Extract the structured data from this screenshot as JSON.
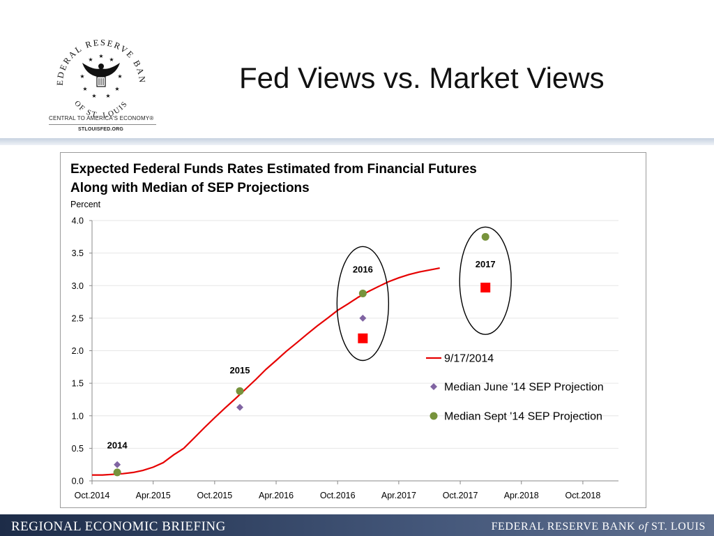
{
  "header": {
    "logo": {
      "seal_text_top": "FEDERAL RESERVE BANK",
      "seal_text_bottom": "OF ST. LOUIS",
      "tagline": "CENTRAL TO AMERICA'S ECONOMY®",
      "url": "STLOUISFED.ORG"
    },
    "title": "Fed Views vs. Market Views"
  },
  "footer": {
    "left": "REGIONAL ECONOMIC BRIEFING",
    "right_prefix": "FEDERAL RESERVE BANK ",
    "right_of": "of",
    "right_suffix": " ST. LOUIS"
  },
  "colors": {
    "line": "#e60000",
    "june_marker": "#8064a2",
    "sept_marker": "#77933c",
    "square_marker": "#ff0000",
    "footer_band": "#2d3c5c"
  },
  "chart_data": {
    "type": "line",
    "title": "Expected Federal Funds Rates Estimated from Financial Futures Along with Median of SEP Projections",
    "ylabel": "Percent",
    "ylim": [
      0,
      4
    ],
    "yticks": [
      "0.0",
      "0.5",
      "1.0",
      "1.5",
      "2.0",
      "2.5",
      "3.0",
      "3.5",
      "4.0"
    ],
    "xticks": [
      "Oct.2014",
      "Apr.2015",
      "Oct.2015",
      "Apr.2016",
      "Oct.2016",
      "Apr.2017",
      "Oct.2017",
      "Apr.2018",
      "Oct.2018"
    ],
    "x_range": [
      "2014-10-01",
      "2019-01-15"
    ],
    "grid": true,
    "legend_position": "right",
    "series": [
      {
        "name": "9/17/2014",
        "kind": "line",
        "points": [
          [
            "2014-10-01",
            0.09
          ],
          [
            "2014-11-01",
            0.09
          ],
          [
            "2014-12-01",
            0.1
          ],
          [
            "2015-01-01",
            0.11
          ],
          [
            "2015-02-01",
            0.13
          ],
          [
            "2015-03-01",
            0.16
          ],
          [
            "2015-04-01",
            0.21
          ],
          [
            "2015-05-01",
            0.28
          ],
          [
            "2015-06-01",
            0.4
          ],
          [
            "2015-07-01",
            0.5
          ],
          [
            "2015-08-01",
            0.66
          ],
          [
            "2015-09-01",
            0.82
          ],
          [
            "2015-10-01",
            0.97
          ],
          [
            "2015-11-01",
            1.12
          ],
          [
            "2015-12-01",
            1.26
          ],
          [
            "2016-01-01",
            1.41
          ],
          [
            "2016-02-01",
            1.56
          ],
          [
            "2016-03-01",
            1.71
          ],
          [
            "2016-04-01",
            1.85
          ],
          [
            "2016-05-01",
            1.99
          ],
          [
            "2016-06-01",
            2.12
          ],
          [
            "2016-07-01",
            2.25
          ],
          [
            "2016-08-01",
            2.38
          ],
          [
            "2016-09-01",
            2.5
          ],
          [
            "2016-10-01",
            2.62
          ],
          [
            "2016-11-01",
            2.72
          ],
          [
            "2016-12-01",
            2.82
          ],
          [
            "2017-01-01",
            2.91
          ],
          [
            "2017-02-01",
            2.99
          ],
          [
            "2017-03-01",
            3.06
          ],
          [
            "2017-04-01",
            3.12
          ],
          [
            "2017-05-01",
            3.17
          ],
          [
            "2017-06-01",
            3.21
          ],
          [
            "2017-07-01",
            3.24
          ],
          [
            "2017-08-01",
            3.27
          ]
        ]
      },
      {
        "name": "Median June '14 SEP Projection",
        "kind": "diamond",
        "points": [
          [
            "2014-12-15",
            0.25
          ],
          [
            "2015-12-15",
            1.13
          ],
          [
            "2016-12-15",
            2.5
          ]
        ]
      },
      {
        "name": "Median Sept '14 SEP Projection",
        "kind": "circle",
        "points": [
          [
            "2014-12-15",
            0.13
          ],
          [
            "2015-12-15",
            1.38
          ],
          [
            "2016-12-15",
            2.88
          ],
          [
            "2017-12-15",
            3.75
          ]
        ]
      },
      {
        "name": "",
        "kind": "square",
        "points": [
          [
            "2016-12-15",
            2.19
          ],
          [
            "2017-12-15",
            2.97
          ]
        ]
      }
    ],
    "annotations": [
      {
        "text": "2014",
        "x": "2014-12-15",
        "y": 0.5
      },
      {
        "text": "2015",
        "x": "2015-12-15",
        "y": 1.65
      },
      {
        "text": "2016",
        "x": "2016-12-15",
        "y": 3.2
      },
      {
        "text": "2017",
        "x": "2017-12-15",
        "y": 3.28
      }
    ],
    "ellipses": [
      {
        "label": "2016",
        "x": "2016-12-15",
        "y_range": [
          1.85,
          3.6
        ]
      },
      {
        "label": "2017",
        "x": "2017-12-15",
        "y_range": [
          2.25,
          3.9
        ]
      }
    ]
  }
}
